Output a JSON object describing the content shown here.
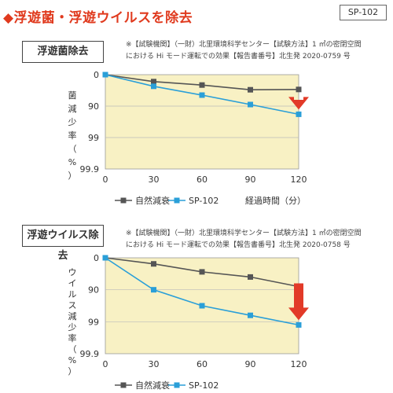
{
  "header": {
    "title": "◆浮遊菌・浮遊ウイルスを除去",
    "model": "SP-102"
  },
  "colors": {
    "accent": "#e03a1e",
    "plot_bg": "#f8f1c4",
    "series_natural": "#555555",
    "series_sp102": "#2a9fd8",
    "arrow": "#e23a28"
  },
  "chart_data": [
    {
      "type": "line",
      "panel_title": "浮遊菌除去",
      "note_lines": [
        "※【試験機関】（一財）北里環境科学センター【試験方法】1 ㎥の密閉空間",
        "における Hi モード運転での効果【報告書番号】北生発 2020-0759 号"
      ],
      "x": [
        0,
        30,
        60,
        90,
        120
      ],
      "xticks": [
        "0",
        "30",
        "60",
        "90",
        "120"
      ],
      "yticks": [
        "0",
        "90",
        "99",
        "99.9"
      ],
      "ylabel_chars": [
        "菌",
        "減",
        "少",
        "率",
        "（",
        "%",
        "）"
      ],
      "xlabel": "経過時間（分）",
      "series": [
        {
          "name": "自然減衰",
          "values": [
            0,
            0.22,
            0.33,
            0.48,
            0.47
          ]
        },
        {
          "name": "SP-102",
          "values": [
            0,
            0.37,
            0.65,
            0.95,
            1.26
          ]
        }
      ],
      "legend": [
        "自然減衰",
        "SP-102"
      ]
    },
    {
      "type": "line",
      "panel_title": "浮遊ウイルス除去",
      "note_lines": [
        "※【試験機関】（一財）北里環境科学センター【試験方法】1 ㎥の密閉空間",
        "における Hi モード運転での効果【報告書番号】北生発 2020-0758 号"
      ],
      "x": [
        0,
        30,
        60,
        90,
        120
      ],
      "xticks": [
        "0",
        "30",
        "60",
        "90",
        "120"
      ],
      "yticks": [
        "0",
        "90",
        "99",
        "99.9"
      ],
      "ylabel_chars": [
        "ウ",
        "イ",
        "ル",
        "ス",
        "減",
        "少",
        "率",
        "（",
        "%",
        "）"
      ],
      "xlabel": "",
      "series": [
        {
          "name": "自然減衰",
          "values": [
            0,
            0.19,
            0.44,
            0.6,
            0.9
          ]
        },
        {
          "name": "SP-102",
          "values": [
            0,
            1.0,
            1.5,
            1.8,
            2.1
          ]
        }
      ],
      "legend": [
        "自然減衰",
        "SP-102"
      ]
    }
  ]
}
